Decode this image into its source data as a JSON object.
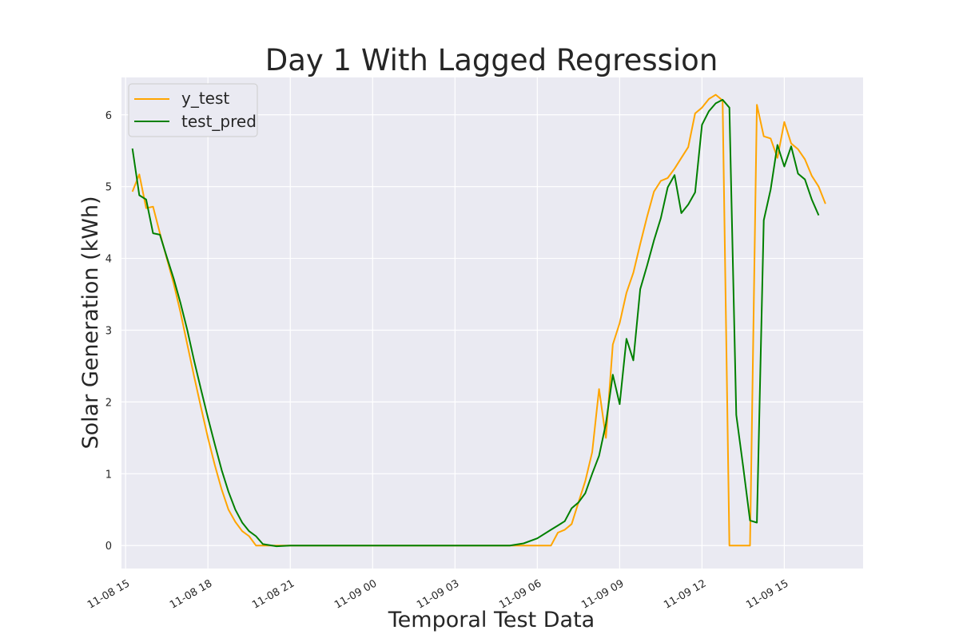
{
  "chart_data": {
    "type": "line",
    "title": "Day 1 With Lagged Regression",
    "xlabel": "Temporal Test Data",
    "ylabel": "Solar Generation (kWh)",
    "x_ticks": [
      "11-08 15",
      "11-08 18",
      "11-08 21",
      "11-09 00",
      "11-09 03",
      "11-09 06",
      "11-09 09",
      "11-09 12",
      "11-09 15"
    ],
    "y_ticks": [
      "0",
      "1",
      "2",
      "3",
      "4",
      "5",
      "6"
    ],
    "xlim_hours": [
      14.85,
      41.87
    ],
    "ylim": [
      -0.32,
      6.52
    ],
    "grid": true,
    "legend_position": "top-left",
    "series": [
      {
        "name": "y_test",
        "color": "#ffa500",
        "points": [
          [
            15.25,
            4.93
          ],
          [
            15.5,
            5.17
          ],
          [
            15.75,
            4.7
          ],
          [
            16.0,
            4.72
          ],
          [
            16.25,
            4.35
          ],
          [
            16.5,
            4.0
          ],
          [
            16.75,
            3.65
          ],
          [
            17.0,
            3.25
          ],
          [
            17.25,
            2.8
          ],
          [
            17.5,
            2.35
          ],
          [
            17.75,
            1.92
          ],
          [
            18.0,
            1.5
          ],
          [
            18.25,
            1.12
          ],
          [
            18.5,
            0.78
          ],
          [
            18.75,
            0.5
          ],
          [
            19.0,
            0.33
          ],
          [
            19.25,
            0.2
          ],
          [
            19.5,
            0.13
          ],
          [
            19.75,
            0.0
          ],
          [
            20.0,
            0.0
          ],
          [
            20.5,
            0.0
          ],
          [
            21.0,
            0.0
          ],
          [
            25.0,
            0.0
          ],
          [
            29.0,
            0.0
          ],
          [
            30.5,
            0.0
          ],
          [
            30.75,
            0.18
          ],
          [
            31.0,
            0.22
          ],
          [
            31.25,
            0.3
          ],
          [
            31.5,
            0.6
          ],
          [
            31.75,
            0.9
          ],
          [
            32.0,
            1.3
          ],
          [
            32.25,
            2.18
          ],
          [
            32.5,
            1.5
          ],
          [
            32.75,
            2.8
          ],
          [
            33.0,
            3.1
          ],
          [
            33.25,
            3.52
          ],
          [
            33.5,
            3.8
          ],
          [
            33.75,
            4.2
          ],
          [
            34.0,
            4.58
          ],
          [
            34.25,
            4.93
          ],
          [
            34.5,
            5.08
          ],
          [
            34.75,
            5.12
          ],
          [
            35.0,
            5.25
          ],
          [
            35.25,
            5.4
          ],
          [
            35.5,
            5.55
          ],
          [
            35.75,
            6.02
          ],
          [
            36.0,
            6.1
          ],
          [
            36.25,
            6.22
          ],
          [
            36.5,
            6.28
          ],
          [
            36.75,
            6.2
          ],
          [
            37.0,
            0.0
          ],
          [
            37.25,
            0.0
          ],
          [
            37.5,
            0.0
          ],
          [
            37.75,
            0.0
          ],
          [
            38.0,
            6.14
          ],
          [
            38.25,
            5.7
          ],
          [
            38.5,
            5.67
          ],
          [
            38.75,
            5.4
          ],
          [
            39.0,
            5.9
          ],
          [
            39.25,
            5.6
          ],
          [
            39.5,
            5.52
          ],
          [
            39.75,
            5.38
          ],
          [
            40.0,
            5.15
          ],
          [
            40.25,
            5.0
          ],
          [
            40.5,
            4.76
          ]
        ]
      },
      {
        "name": "test_pred",
        "color": "#008000",
        "points": [
          [
            15.25,
            5.53
          ],
          [
            15.5,
            4.88
          ],
          [
            15.75,
            4.82
          ],
          [
            16.0,
            4.35
          ],
          [
            16.25,
            4.33
          ],
          [
            16.5,
            4.02
          ],
          [
            16.75,
            3.72
          ],
          [
            17.0,
            3.38
          ],
          [
            17.25,
            3.0
          ],
          [
            17.5,
            2.57
          ],
          [
            17.75,
            2.17
          ],
          [
            18.0,
            1.78
          ],
          [
            18.25,
            1.41
          ],
          [
            18.5,
            1.05
          ],
          [
            18.75,
            0.75
          ],
          [
            19.0,
            0.5
          ],
          [
            19.25,
            0.32
          ],
          [
            19.5,
            0.2
          ],
          [
            19.75,
            0.13
          ],
          [
            20.0,
            0.02
          ],
          [
            20.5,
            -0.01
          ],
          [
            21.0,
            0.0
          ],
          [
            25.0,
            0.0
          ],
          [
            28.0,
            0.0
          ],
          [
            29.0,
            0.0
          ],
          [
            29.5,
            0.03
          ],
          [
            30.0,
            0.1
          ],
          [
            30.5,
            0.22
          ],
          [
            30.75,
            0.28
          ],
          [
            31.0,
            0.34
          ],
          [
            31.25,
            0.52
          ],
          [
            31.5,
            0.6
          ],
          [
            31.75,
            0.73
          ],
          [
            32.0,
            1.0
          ],
          [
            32.25,
            1.25
          ],
          [
            32.5,
            1.7
          ],
          [
            32.75,
            2.38
          ],
          [
            33.0,
            1.97
          ],
          [
            33.25,
            2.88
          ],
          [
            33.5,
            2.58
          ],
          [
            33.75,
            3.57
          ],
          [
            34.0,
            3.9
          ],
          [
            34.25,
            4.25
          ],
          [
            34.5,
            4.56
          ],
          [
            34.75,
            4.99
          ],
          [
            35.0,
            5.16
          ],
          [
            35.25,
            4.63
          ],
          [
            35.5,
            4.75
          ],
          [
            35.75,
            4.92
          ],
          [
            36.0,
            5.86
          ],
          [
            36.25,
            6.05
          ],
          [
            36.5,
            6.16
          ],
          [
            36.75,
            6.21
          ],
          [
            37.0,
            6.1
          ],
          [
            37.25,
            1.82
          ],
          [
            37.5,
            1.1
          ],
          [
            37.75,
            0.35
          ],
          [
            38.0,
            0.32
          ],
          [
            38.25,
            4.53
          ],
          [
            38.5,
            4.96
          ],
          [
            38.75,
            5.58
          ],
          [
            39.0,
            5.28
          ],
          [
            39.25,
            5.56
          ],
          [
            39.5,
            5.18
          ],
          [
            39.75,
            5.1
          ],
          [
            40.0,
            4.82
          ],
          [
            40.25,
            4.6
          ]
        ]
      }
    ]
  }
}
